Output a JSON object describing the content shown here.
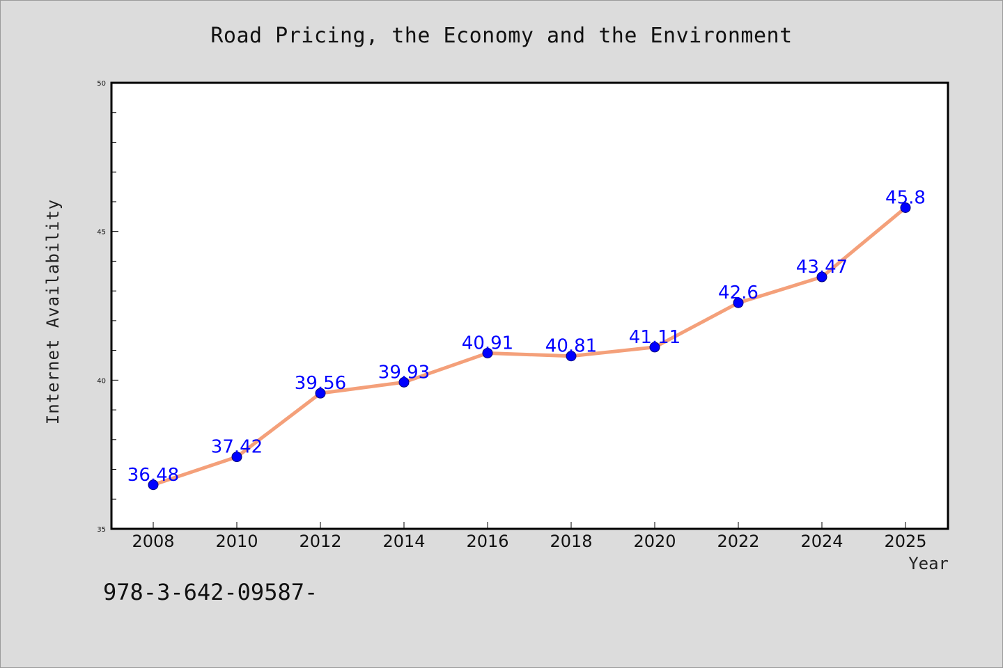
{
  "chart_data": {
    "type": "line",
    "title": "Road Pricing, the Economy and the Environment",
    "xlabel": "Year",
    "ylabel": "Internet Availability",
    "categories": [
      "2008",
      "2010",
      "2012",
      "2014",
      "2016",
      "2018",
      "2020",
      "2022",
      "2024",
      "2025"
    ],
    "series": [
      {
        "values": [
          36.48,
          37.42,
          39.56,
          39.93,
          40.91,
          40.81,
          41.11,
          42.6,
          43.47,
          45.8
        ],
        "labels": [
          "36.48",
          "37.42",
          "39.56",
          "39.93",
          "40.91",
          "40.81",
          "41.11",
          "42.6",
          "43.47",
          "45.8"
        ]
      }
    ],
    "ylim": [
      35,
      50
    ],
    "yticks": [
      "35",
      "40",
      "45",
      "50"
    ],
    "grid": false,
    "legend": "none"
  },
  "colors": {
    "background": "#dcdcdc",
    "plot_area": "#ffffff",
    "line": "#f4a07a",
    "marker": "#0000ff",
    "data_label": "#0000ff"
  },
  "footnote": "978-3-642-09587-"
}
